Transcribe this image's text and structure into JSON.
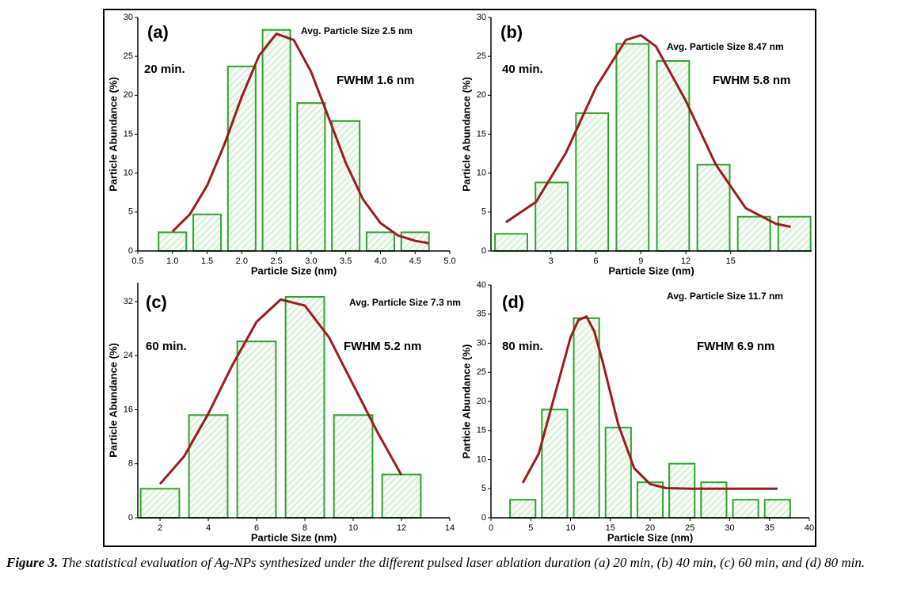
{
  "chart_data": [
    {
      "type": "bar",
      "title": "(a)",
      "annotations": [
        "20 min.",
        "Avg. Particle Size 2.5 nm",
        "FWHM 1.6 nm"
      ],
      "xlabel": "Particle Size (nm)",
      "ylabel": "Particle Abundance (%)",
      "xlim": [
        0.5,
        5.0
      ],
      "ylim": [
        0,
        30
      ],
      "xticks": [
        0.5,
        {
          "value": 1,
          "label": "1.0"
        },
        1.5,
        {
          "value": 2,
          "label": "2.0"
        },
        2.5,
        {
          "value": 3,
          "label": "3.0"
        },
        3.5,
        {
          "value": 4,
          "label": "4.0"
        },
        4.5,
        {
          "value": 5,
          "label": "5.0"
        }
      ],
      "yticks": [
        0,
        5,
        10,
        15,
        20,
        25,
        30
      ],
      "series": [
        {
          "type": "bar",
          "color": "#2ea32e",
          "x": [
            1.0,
            1.5,
            2.0,
            2.5,
            3.0,
            3.5,
            4.0,
            4.5
          ],
          "values": [
            2.4,
            4.7,
            23.7,
            28.4,
            19.0,
            16.7,
            2.4,
            2.4
          ]
        },
        {
          "type": "line",
          "color": "#9b1c1c",
          "x": [
            1.0,
            1.25,
            1.5,
            1.75,
            2.0,
            2.25,
            2.5,
            2.75,
            3.0,
            3.25,
            3.5,
            3.75,
            4.0,
            4.25,
            4.5,
            4.7
          ],
          "values": [
            2.5,
            4.7,
            8.4,
            13.7,
            19.8,
            25.1,
            27.9,
            27.1,
            23.0,
            17.2,
            11.3,
            6.6,
            3.6,
            2.0,
            1.3,
            1.0
          ]
        }
      ]
    },
    {
      "type": "bar",
      "title": "(b)",
      "annotations": [
        "40 min.",
        "Avg. Particle Size 8.47 nm",
        "FWHM 5.8 nm"
      ],
      "xlabel": "Particle Size (nm)",
      "ylabel": "Particle Abundance (%)",
      "xlim": [
        -1,
        20.4
      ],
      "ylim": [
        0,
        30
      ],
      "xticks": [
        3,
        6,
        9,
        12,
        15
      ],
      "yticks": [
        0,
        5,
        10,
        15,
        20,
        25,
        30
      ],
      "series": [
        {
          "type": "bar",
          "color": "#2ea32e",
          "x": [
            0.35,
            3.05,
            5.75,
            8.45,
            11.15,
            13.85,
            16.55,
            19.25
          ],
          "values": [
            2.2,
            8.8,
            17.7,
            26.6,
            24.4,
            11.1,
            4.4,
            4.4
          ]
        },
        {
          "type": "line",
          "color": "#9b1c1c",
          "x": [
            0,
            2,
            4,
            6,
            8,
            9,
            10,
            12,
            14,
            16,
            18,
            19
          ],
          "values": [
            3.7,
            6.3,
            12.6,
            21.0,
            27.1,
            27.7,
            26.3,
            19.3,
            11.1,
            5.5,
            3.5,
            3.1
          ]
        }
      ]
    },
    {
      "type": "bar",
      "title": "(c)",
      "annotations": [
        "60 min.",
        "Avg. Particle Size 7.3 nm",
        "FWHM 5.2 nm"
      ],
      "xlabel": "Particle Size (nm)",
      "ylabel": "Particle Abundance (%)",
      "xlim": [
        1.08,
        14
      ],
      "ylim": [
        0,
        34.8
      ],
      "xticks": [
        2,
        4,
        6,
        8,
        10,
        12,
        14
      ],
      "yticks": [
        0,
        8,
        16,
        24,
        32
      ],
      "series": [
        {
          "type": "bar",
          "color": "#2ea32e",
          "x": [
            2,
            4,
            6,
            8,
            10,
            12
          ],
          "values": [
            4.3,
            15.2,
            26.1,
            32.7,
            15.2,
            6.4
          ]
        },
        {
          "type": "line",
          "color": "#9b1c1c",
          "x": [
            2,
            3,
            4,
            5,
            6,
            7,
            8,
            9,
            10,
            11,
            12
          ],
          "values": [
            5.0,
            9.1,
            15.4,
            22.6,
            29.0,
            32.3,
            31.4,
            26.7,
            19.7,
            12.7,
            6.3
          ]
        }
      ]
    },
    {
      "type": "bar",
      "title": "(d)",
      "annotations": [
        "80 min.",
        "Avg. Particle Size 11.7 nm",
        "FWHM 6.9 nm"
      ],
      "xlabel": "Particle Size (nm)",
      "ylabel": "Particle Abundance (%)",
      "xlim": [
        0,
        40
      ],
      "ylim": [
        0,
        40
      ],
      "xticks": [
        0,
        5,
        10,
        15,
        20,
        25,
        30,
        35,
        40
      ],
      "yticks": [
        0,
        5,
        10,
        15,
        20,
        25,
        30,
        35,
        40
      ],
      "series": [
        {
          "type": "bar",
          "color": "#2ea32e",
          "x": [
            4,
            8,
            12,
            16,
            20,
            24,
            28,
            32,
            36
          ],
          "values": [
            3.1,
            18.6,
            34.3,
            15.5,
            6.1,
            9.3,
            6.1,
            3.1,
            3.1
          ]
        },
        {
          "type": "line",
          "color": "#9b1c1c",
          "x": [
            4,
            6,
            8,
            10,
            11,
            12,
            13,
            14,
            16,
            18,
            20,
            22,
            25,
            30,
            36
          ],
          "values": [
            6.0,
            11.0,
            21.0,
            31.0,
            34.0,
            34.6,
            32.0,
            27.0,
            16.0,
            8.5,
            5.8,
            5.1,
            5.0,
            5.0,
            5.0
          ]
        }
      ]
    }
  ],
  "caption": {
    "label": "Figure 3.",
    "text": "The statistical evaluation of Ag-NPs synthesized under the different pulsed laser ablation duration (a) 20 min, (b) 40 min, (c) 60 min, and (d) 80 min."
  }
}
